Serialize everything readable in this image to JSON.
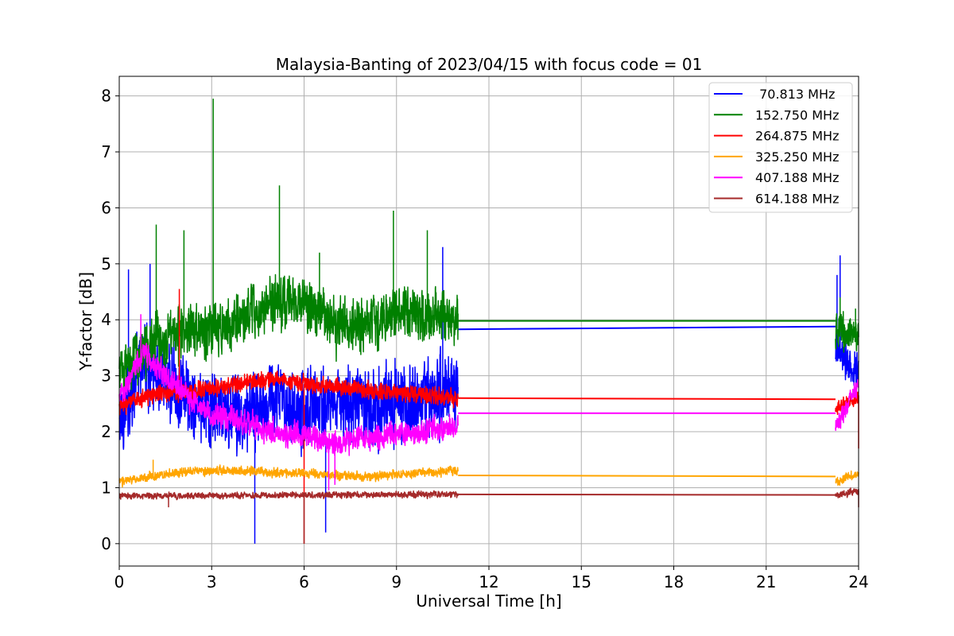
{
  "chart_data": {
    "type": "line",
    "title": "Malaysia-Banting of 2023/04/15 with focus code = 01",
    "xlabel": "Universal Time [h]",
    "ylabel": "Y-factor [dB]",
    "xlim": [
      0,
      24
    ],
    "ylim": [
      -0.4,
      8.35
    ],
    "xticks": [
      0,
      3,
      6,
      9,
      12,
      15,
      18,
      21,
      24
    ],
    "yticks": [
      0,
      1,
      2,
      3,
      4,
      5,
      6,
      7,
      8
    ],
    "x_tick_labels": [
      "0",
      "3",
      "6",
      "9",
      "12",
      "15",
      "18",
      "21",
      "24"
    ],
    "y_tick_labels": [
      "0",
      "1",
      "2",
      "3",
      "4",
      "5",
      "6",
      "7",
      "8"
    ],
    "grid": true,
    "legend_position": "top-right",
    "segments": [
      [
        0,
        11
      ],
      [
        23.25,
        24
      ]
    ],
    "gap_interval": [
      11,
      23.25
    ],
    "series": [
      {
        "name": " 70.813 MHz",
        "color": "#0000ff",
        "base": [
          [
            0,
            2.1
          ],
          [
            0.8,
            3.3
          ],
          [
            1.5,
            3.0
          ],
          [
            2.5,
            2.4
          ],
          [
            4,
            2.3
          ],
          [
            5,
            2.6
          ],
          [
            6,
            2.4
          ],
          [
            7,
            2.5
          ],
          [
            8,
            2.5
          ],
          [
            9.5,
            2.5
          ],
          [
            11,
            2.8
          ]
        ],
        "noise": 1.0,
        "spikes": [
          [
            0.3,
            4.9
          ],
          [
            1.0,
            5.0
          ],
          [
            4.4,
            0.0
          ],
          [
            6.7,
            0.2
          ],
          [
            10.5,
            5.3
          ]
        ],
        "gap_line": [
          3.83,
          3.88
        ],
        "end_base": [
          [
            23.25,
            3.5
          ],
          [
            24,
            3.0
          ]
        ],
        "end_noise": 0.5,
        "end_spikes": [
          [
            23.4,
            5.15
          ],
          [
            23.3,
            4.8
          ]
        ]
      },
      {
        "name": "152.750 MHz",
        "color": "#008000",
        "base": [
          [
            0,
            3.0
          ],
          [
            1,
            3.6
          ],
          [
            2,
            3.8
          ],
          [
            3,
            3.8
          ],
          [
            4,
            4.0
          ],
          [
            5,
            4.3
          ],
          [
            6,
            4.3
          ],
          [
            7,
            3.9
          ],
          [
            8,
            4.0
          ],
          [
            9,
            4.1
          ],
          [
            10,
            4.1
          ],
          [
            11,
            4.0
          ]
        ],
        "noise": 0.7,
        "spikes": [
          [
            1.2,
            5.7
          ],
          [
            2.1,
            5.6
          ],
          [
            3.05,
            7.95
          ],
          [
            5.2,
            6.4
          ],
          [
            6.5,
            5.2
          ],
          [
            8.9,
            5.95
          ],
          [
            10,
            5.6
          ]
        ],
        "gap_line": [
          3.98,
          3.98
        ],
        "end_base": [
          [
            23.25,
            3.8
          ],
          [
            24,
            3.7
          ]
        ],
        "end_noise": 0.5,
        "end_spikes": [
          [
            23.4,
            4.4
          ],
          [
            23.9,
            4.2
          ]
        ]
      },
      {
        "name": "264.875 MHz",
        "color": "#ff0000",
        "base": [
          [
            0,
            2.45
          ],
          [
            1,
            2.65
          ],
          [
            2.5,
            2.75
          ],
          [
            4,
            2.85
          ],
          [
            5,
            2.95
          ],
          [
            6,
            2.85
          ],
          [
            8,
            2.75
          ],
          [
            9,
            2.7
          ],
          [
            11,
            2.6
          ]
        ],
        "noise": 0.22,
        "spikes": [
          [
            1.95,
            4.55
          ],
          [
            6.0,
            0.0
          ]
        ],
        "gap_line": [
          2.6,
          2.58
        ],
        "end_base": [
          [
            23.25,
            2.4
          ],
          [
            24,
            2.65
          ]
        ],
        "end_noise": 0.2,
        "end_spikes": [
          [
            24,
            1.7
          ]
        ]
      },
      {
        "name": "325.250 MHz",
        "color": "#ffa500",
        "base": [
          [
            0,
            1.1
          ],
          [
            1,
            1.2
          ],
          [
            2.5,
            1.3
          ],
          [
            4,
            1.3
          ],
          [
            6,
            1.25
          ],
          [
            8,
            1.2
          ],
          [
            11,
            1.3
          ]
        ],
        "noise": 0.12,
        "spikes": [
          [
            1.1,
            1.5
          ]
        ],
        "gap_line": [
          1.22,
          1.2
        ],
        "end_base": [
          [
            23.25,
            1.1
          ],
          [
            24,
            1.25
          ]
        ],
        "end_noise": 0.12,
        "end_spikes": []
      },
      {
        "name": "407.188 MHz",
        "color": "#ff00ff",
        "base": [
          [
            0,
            2.6
          ],
          [
            0.8,
            3.4
          ],
          [
            1.5,
            3.0
          ],
          [
            2.3,
            2.6
          ],
          [
            3,
            2.3
          ],
          [
            4,
            2.2
          ],
          [
            5,
            2.0
          ],
          [
            6,
            1.95
          ],
          [
            7,
            1.8
          ],
          [
            8,
            1.9
          ],
          [
            9,
            1.95
          ],
          [
            10,
            2.0
          ],
          [
            11,
            2.1
          ]
        ],
        "noise": 0.32,
        "spikes": [
          [
            0.7,
            4.1
          ],
          [
            6.8,
            0.95
          ],
          [
            7.0,
            1.05
          ]
        ],
        "gap_line": [
          2.33,
          2.33
        ],
        "end_base": [
          [
            23.25,
            2.1
          ],
          [
            24,
            2.85
          ]
        ],
        "end_noise": 0.25,
        "end_spikes": []
      },
      {
        "name": "614.188 MHz",
        "color": "#a52a2a",
        "base": [
          [
            0,
            0.85
          ],
          [
            11,
            0.88
          ]
        ],
        "noise": 0.08,
        "spikes": [
          [
            6.0,
            0.0
          ],
          [
            1.6,
            0.65
          ]
        ],
        "gap_line": [
          0.88,
          0.87
        ],
        "end_base": [
          [
            23.25,
            0.85
          ],
          [
            24,
            0.95
          ]
        ],
        "end_noise": 0.1,
        "end_spikes": [
          [
            24,
            0.65
          ]
        ]
      }
    ]
  }
}
